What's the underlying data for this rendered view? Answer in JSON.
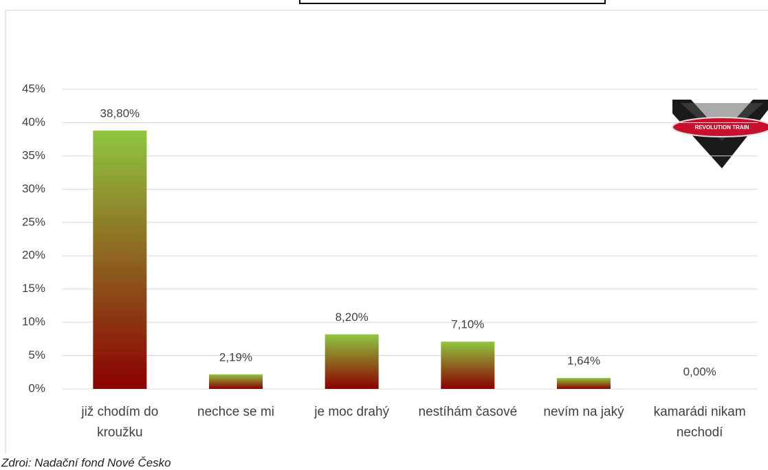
{
  "chart_data": {
    "type": "bar",
    "categories": [
      "již chodím do kroužku",
      "nechce se mi",
      "je moc drahý",
      "nestíhám časové",
      "nevím na jaký",
      "kamarádi nikam nechodí"
    ],
    "values": [
      38.8,
      2.19,
      8.2,
      7.1,
      1.64,
      0
    ],
    "value_labels": [
      "38,80%",
      "2,19%",
      "8,20%",
      "7,10%",
      "1,64%",
      "0,00%"
    ],
    "color_top": "#8fc63f",
    "color_bottom": "#8b0000",
    "ylim": [
      0,
      45
    ],
    "yticks": [
      {
        "value": 0,
        "label": "0%"
      },
      {
        "value": 5,
        "label": "5%"
      },
      {
        "value": 10,
        "label": "10%"
      },
      {
        "value": 15,
        "label": "15%"
      },
      {
        "value": 20,
        "label": "20%"
      },
      {
        "value": 25,
        "label": "25%"
      },
      {
        "value": 30,
        "label": "30%"
      },
      {
        "value": 35,
        "label": "35%"
      },
      {
        "value": 40,
        "label": "40%"
      },
      {
        "value": 45,
        "label": "45%"
      }
    ],
    "grid": true,
    "logo_text": "REVOLUTION TRAIN",
    "source": "Zdroi: Nadační fond Nové Česko"
  }
}
